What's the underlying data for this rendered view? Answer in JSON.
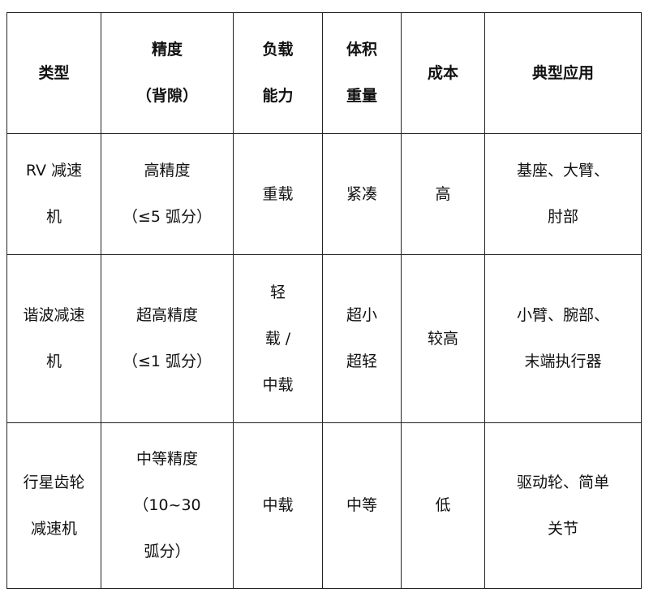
{
  "table": {
    "headers": [
      [
        "类型"
      ],
      [
        "精度",
        "（背隙）"
      ],
      [
        "负载",
        "能力"
      ],
      [
        "体积",
        "重量"
      ],
      [
        "成本"
      ],
      [
        "典型应用"
      ]
    ],
    "rows": [
      [
        [
          "RV 减速",
          "机"
        ],
        [
          "高精度",
          "（≤5 弧分）"
        ],
        [
          "重载"
        ],
        [
          "紧凑"
        ],
        [
          "高"
        ],
        [
          "基座、大臂、",
          "肘部"
        ]
      ],
      [
        [
          "谐波减速",
          "机"
        ],
        [
          "超高精度",
          "（≤1 弧分）"
        ],
        [
          "轻",
          "载 /",
          "中载"
        ],
        [
          "超小",
          "超轻"
        ],
        [
          "较高"
        ],
        [
          "小臂、腕部、",
          "末端执行器"
        ]
      ],
      [
        [
          "行星齿轮",
          "减速机"
        ],
        [
          "中等精度",
          "（10~30",
          "弧分）"
        ],
        [
          "中载"
        ],
        [
          "中等"
        ],
        [
          "低"
        ],
        [
          "驱动轮、简单",
          "关节"
        ]
      ]
    ]
  }
}
